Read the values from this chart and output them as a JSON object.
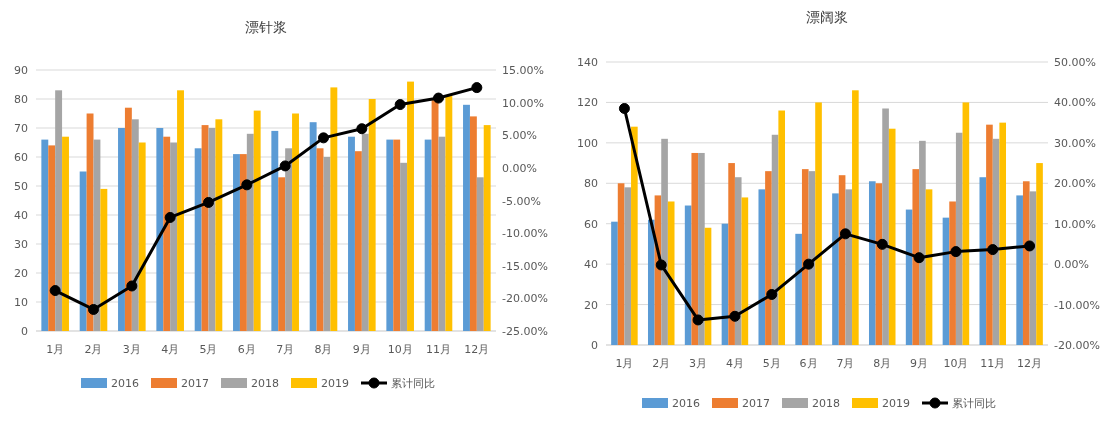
{
  "chart_data": [
    {
      "type": "bar",
      "title": "漂针浆",
      "categories": [
        "1月",
        "2月",
        "3月",
        "4月",
        "5月",
        "6月",
        "7月",
        "8月",
        "9月",
        "10月",
        "11月",
        "12月"
      ],
      "ylim": [
        0,
        90
      ],
      "yticks": [
        0,
        10,
        20,
        30,
        40,
        50,
        60,
        70,
        80,
        90
      ],
      "y2lim": [
        -25,
        15
      ],
      "y2ticks": [
        {
          "value": -25,
          "label": "-25.00%"
        },
        {
          "value": -20,
          "label": "-20.00%"
        },
        {
          "value": -15,
          "label": "-15.00%"
        },
        {
          "value": -10,
          "label": "-10.00%"
        },
        {
          "value": -5,
          "label": "-5.00%"
        },
        {
          "value": 0,
          "label": "0.00%"
        },
        {
          "value": 5,
          "label": "5.00%"
        },
        {
          "value": 10,
          "label": "10.00%"
        },
        {
          "value": 15,
          "label": "15.00%"
        }
      ],
      "grid": "y",
      "legend": "bottom",
      "series": [
        {
          "name": "2016",
          "color": "#5b9bd5",
          "values": [
            66,
            55,
            70,
            70,
            63,
            61,
            69,
            72,
            67,
            66,
            66,
            78
          ]
        },
        {
          "name": "2017",
          "color": "#ed7d31",
          "values": [
            64,
            75,
            77,
            67,
            71,
            61,
            53,
            63,
            62,
            66,
            80,
            74
          ]
        },
        {
          "name": "2018",
          "color": "#a5a5a5",
          "values": [
            83,
            66,
            73,
            65,
            70,
            68,
            63,
            60,
            68,
            58,
            67,
            53
          ]
        },
        {
          "name": "2019",
          "color": "#ffc000",
          "values": [
            67,
            49,
            65,
            83,
            73,
            76,
            75,
            84,
            80,
            86,
            81,
            71
          ]
        },
        {
          "name": "累计同比",
          "type": "line",
          "axis": "y2",
          "marker": "circle",
          "color": "#000000",
          "values": [
            -18.8,
            -21.7,
            -18.1,
            -7.6,
            -5.3,
            -2.6,
            0.3,
            4.6,
            6,
            9.7,
            10.7,
            12.3
          ]
        }
      ]
    },
    {
      "type": "bar",
      "title": "漂阔浆",
      "categories": [
        "1月",
        "2月",
        "3月",
        "4月",
        "5月",
        "6月",
        "7月",
        "8月",
        "9月",
        "10月",
        "11月",
        "12月"
      ],
      "ylim": [
        0,
        140
      ],
      "yticks": [
        0,
        20,
        40,
        60,
        80,
        100,
        120,
        140
      ],
      "y2lim": [
        -20,
        50
      ],
      "y2ticks": [
        {
          "value": -20,
          "label": "-20.00%"
        },
        {
          "value": -10,
          "label": "-10.00%"
        },
        {
          "value": 0,
          "label": "0.00%"
        },
        {
          "value": 10,
          "label": "10.00%"
        },
        {
          "value": 20,
          "label": "20.00%"
        },
        {
          "value": 30,
          "label": "30.00%"
        },
        {
          "value": 40,
          "label": "40.00%"
        },
        {
          "value": 50,
          "label": "50.00%"
        }
      ],
      "grid": "y",
      "legend": "bottom",
      "series": [
        {
          "name": "2016",
          "color": "#5b9bd5",
          "values": [
            61,
            62,
            69,
            60,
            77,
            55,
            75,
            81,
            67,
            63,
            83,
            74
          ]
        },
        {
          "name": "2017",
          "color": "#ed7d31",
          "values": [
            80,
            74,
            95,
            90,
            86,
            87,
            84,
            80,
            87,
            71,
            109,
            81
          ]
        },
        {
          "name": "2018",
          "color": "#a5a5a5",
          "values": [
            78,
            102,
            95,
            83,
            104,
            86,
            77,
            117,
            101,
            105,
            102,
            76
          ]
        },
        {
          "name": "2019",
          "color": "#ffc000",
          "values": [
            108,
            71,
            58,
            73,
            116,
            120,
            126,
            107,
            77,
            120,
            110,
            90
          ]
        },
        {
          "name": "累计同比",
          "type": "line",
          "axis": "y2",
          "marker": "circle",
          "color": "#000000",
          "values": [
            38.5,
            -0.2,
            -13.8,
            -12.9,
            -7.5,
            0,
            7.5,
            4.9,
            1.6,
            3.1,
            3.6,
            4.5
          ]
        }
      ]
    }
  ]
}
